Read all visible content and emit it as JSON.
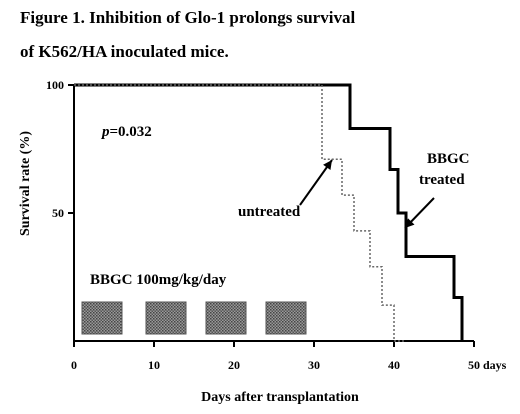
{
  "title_line1": "Figure 1. Inhibition of Glo-1 prolongs survival",
  "title_line2": "of K562/HA inoculated mice.",
  "chart_data": {
    "type": "line",
    "step": true,
    "xlabel": "Days after transplantation",
    "ylabel": "Survival rate (%)",
    "xlim": [
      0,
      50
    ],
    "ylim": [
      0,
      100
    ],
    "xticks": [
      0,
      10,
      20,
      30,
      40,
      50
    ],
    "xtick_labels": [
      "0",
      "10",
      "20",
      "30",
      "40",
      "50 days"
    ],
    "yticks": [
      50,
      100
    ],
    "ytick_labels": [
      "50",
      "100"
    ],
    "grid": false,
    "series": [
      {
        "name": "BBGC treated",
        "color": "#000000",
        "style": "solid-thick",
        "x": [
          0,
          34.5,
          34.5,
          39.5,
          39.5,
          40.5,
          40.5,
          41.5,
          41.5,
          47.5,
          47.5,
          48.5,
          48.5
        ],
        "y": [
          100,
          100,
          83,
          83,
          67,
          67,
          50,
          50,
          33,
          33,
          17,
          17,
          0
        ]
      },
      {
        "name": "untreated",
        "color": "#666666",
        "style": "dotted",
        "x": [
          0,
          31,
          31,
          33.5,
          33.5,
          35,
          35,
          37,
          37,
          38.5,
          38.5,
          40,
          40,
          41.5,
          41.5
        ],
        "y": [
          100,
          100,
          71,
          71,
          57,
          57,
          43,
          43,
          29,
          29,
          14,
          14,
          0,
          0,
          0
        ]
      }
    ],
    "annotations": {
      "pvalue_prefix": "p",
      "pvalue_rest": "=0.032",
      "treated_line1": "BBGC",
      "treated_line2": "treated",
      "untreated": "untreated",
      "dosing": "BBGC 100mg/kg/day"
    },
    "dosing_periods": [
      [
        1,
        6
      ],
      [
        9,
        14
      ],
      [
        16.5,
        21.5
      ],
      [
        24,
        29
      ]
    ]
  }
}
